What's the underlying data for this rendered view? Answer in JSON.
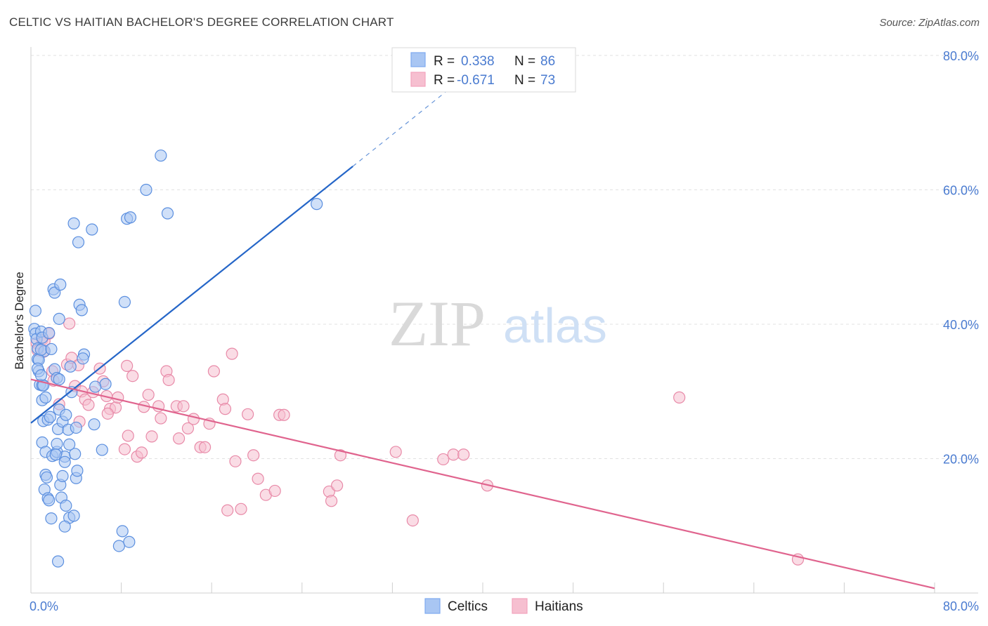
{
  "header": {
    "title": "CELTIC VS HAITIAN BACHELOR'S DEGREE CORRELATION CHART",
    "source": "Source: ZipAtlas.com"
  },
  "watermark": {
    "zip": "ZIP",
    "atlas": "atlas"
  },
  "legend": {
    "r_label": "R =",
    "n_label": "N =",
    "entries": [
      {
        "r": "0.338",
        "n": "86",
        "color": "#7eaaf0"
      },
      {
        "r": "-0.671",
        "n": "73",
        "color": "#f3a3bd"
      }
    ]
  },
  "colors": {
    "celtics_fill": "#a9c6f3",
    "celtics_stroke": "#5b8fdf",
    "celtics_line": "#2566c8",
    "haitians_fill": "#f6bfd0",
    "haitians_stroke": "#e88aa8",
    "haitians_line": "#e0648e",
    "tick_text": "#4a7bd0"
  },
  "chart_data": {
    "type": "scatter",
    "title": "CELTIC VS HAITIAN BACHELOR'S DEGREE CORRELATION CHART",
    "xlabel": "",
    "ylabel": "Bachelor's Degree",
    "xlim": [
      0,
      80
    ],
    "ylim": [
      0,
      80
    ],
    "x_tick_labels": [
      "0.0%",
      "80.0%"
    ],
    "y_tick_labels": [
      "20.0%",
      "40.0%",
      "60.0%",
      "80.0%"
    ],
    "y_ticks": [
      20,
      40,
      60,
      80
    ],
    "grid": true,
    "legend_placement": "top-center",
    "series": [
      {
        "name": "Celtics",
        "r": 0.338,
        "n": 86,
        "trend": {
          "x0": 0,
          "y0": 25.3,
          "x1": 28.5,
          "y1": 63.5,
          "dashed_to_x": 40,
          "dashed_to_y": 79
        },
        "points": [
          [
            0.3,
            39.3
          ],
          [
            0.4,
            38.6
          ],
          [
            0.5,
            37.8
          ],
          [
            0.6,
            36.4
          ],
          [
            0.6,
            34.8
          ],
          [
            0.7,
            33.0
          ],
          [
            0.8,
            31.0
          ],
          [
            0.4,
            42.0
          ],
          [
            0.9,
            38.9
          ],
          [
            1.0,
            30.9
          ],
          [
            1.2,
            36.0
          ],
          [
            1.0,
            28.7
          ],
          [
            1.3,
            29.1
          ],
          [
            1.1,
            25.6
          ],
          [
            1.5,
            25.8
          ],
          [
            1.7,
            26.2
          ],
          [
            1.0,
            22.4
          ],
          [
            1.3,
            21.0
          ],
          [
            1.9,
            20.4
          ],
          [
            2.3,
            21.0
          ],
          [
            1.3,
            17.6
          ],
          [
            1.4,
            17.2
          ],
          [
            1.2,
            15.4
          ],
          [
            1.5,
            14.1
          ],
          [
            1.6,
            13.8
          ],
          [
            1.8,
            11.1
          ],
          [
            2.6,
            16.1
          ],
          [
            2.8,
            17.4
          ],
          [
            2.4,
            24.4
          ],
          [
            2.3,
            22.2
          ],
          [
            2.5,
            27.3
          ],
          [
            2.8,
            25.5
          ],
          [
            2.1,
            33.3
          ],
          [
            2.3,
            32.0
          ],
          [
            2.0,
            45.2
          ],
          [
            2.1,
            44.7
          ],
          [
            2.6,
            45.9
          ],
          [
            2.5,
            40.8
          ],
          [
            1.1,
            30.9
          ],
          [
            0.7,
            34.7
          ],
          [
            3.0,
            20.3
          ],
          [
            3.0,
            19.5
          ],
          [
            2.7,
            14.2
          ],
          [
            3.1,
            13.0
          ],
          [
            3.4,
            11.2
          ],
          [
            3.0,
            9.9
          ],
          [
            3.8,
            11.5
          ],
          [
            4.0,
            17.1
          ],
          [
            4.1,
            18.2
          ],
          [
            3.9,
            20.7
          ],
          [
            3.3,
            24.3
          ],
          [
            3.4,
            22.1
          ],
          [
            4.0,
            24.6
          ],
          [
            3.5,
            33.7
          ],
          [
            3.6,
            29.9
          ],
          [
            4.3,
            42.9
          ],
          [
            4.5,
            42.1
          ],
          [
            4.7,
            35.5
          ],
          [
            4.6,
            34.9
          ],
          [
            5.6,
            25.1
          ],
          [
            6.3,
            21.3
          ],
          [
            6.6,
            31.1
          ],
          [
            3.8,
            55.0
          ],
          [
            4.2,
            52.2
          ],
          [
            5.4,
            54.1
          ],
          [
            8.3,
            43.3
          ],
          [
            8.5,
            55.7
          ],
          [
            8.8,
            55.9
          ],
          [
            10.2,
            60.0
          ],
          [
            11.5,
            65.1
          ],
          [
            12.1,
            56.5
          ],
          [
            25.3,
            57.9
          ],
          [
            8.1,
            9.2
          ],
          [
            7.8,
            7.0
          ],
          [
            8.7,
            7.6
          ],
          [
            2.4,
            4.7
          ],
          [
            0.9,
            36.2
          ],
          [
            1.0,
            38.0
          ],
          [
            1.6,
            38.7
          ],
          [
            1.8,
            36.3
          ],
          [
            0.6,
            33.4
          ],
          [
            0.9,
            32.4
          ],
          [
            2.5,
            31.8
          ],
          [
            3.1,
            26.5
          ],
          [
            5.7,
            30.7
          ],
          [
            2.2,
            20.6
          ]
        ]
      },
      {
        "name": "Haitians",
        "r": -0.671,
        "n": 73,
        "trend": {
          "x0": 0,
          "y0": 31.8,
          "x1": 80,
          "y1": 0.7
        },
        "points": [
          [
            0.5,
            37.2
          ],
          [
            0.6,
            36.1
          ],
          [
            1.0,
            37.7
          ],
          [
            1.2,
            37.5
          ],
          [
            1.6,
            38.6
          ],
          [
            1.1,
            35.9
          ],
          [
            1.9,
            33.0
          ],
          [
            2.0,
            31.6
          ],
          [
            2.5,
            28.1
          ],
          [
            3.2,
            34.0
          ],
          [
            3.4,
            40.1
          ],
          [
            3.6,
            35.0
          ],
          [
            3.9,
            30.8
          ],
          [
            4.2,
            33.9
          ],
          [
            4.5,
            30.0
          ],
          [
            4.8,
            28.8
          ],
          [
            5.1,
            28.0
          ],
          [
            4.3,
            25.5
          ],
          [
            5.5,
            29.9
          ],
          [
            6.1,
            33.4
          ],
          [
            6.4,
            31.5
          ],
          [
            6.7,
            29.3
          ],
          [
            7.0,
            27.4
          ],
          [
            7.5,
            27.6
          ],
          [
            7.7,
            29.1
          ],
          [
            6.8,
            26.7
          ],
          [
            8.5,
            33.8
          ],
          [
            9.0,
            32.3
          ],
          [
            8.6,
            23.4
          ],
          [
            8.3,
            21.4
          ],
          [
            9.4,
            20.3
          ],
          [
            9.8,
            20.9
          ],
          [
            10.0,
            27.7
          ],
          [
            10.4,
            29.5
          ],
          [
            10.7,
            23.3
          ],
          [
            11.3,
            27.8
          ],
          [
            11.5,
            26.0
          ],
          [
            12.0,
            33.0
          ],
          [
            12.2,
            31.7
          ],
          [
            12.9,
            27.8
          ],
          [
            13.1,
            23.0
          ],
          [
            13.5,
            27.8
          ],
          [
            13.9,
            24.5
          ],
          [
            14.4,
            25.9
          ],
          [
            15.0,
            21.7
          ],
          [
            15.4,
            21.7
          ],
          [
            15.8,
            25.2
          ],
          [
            16.2,
            33.0
          ],
          [
            17.0,
            28.8
          ],
          [
            17.2,
            27.4
          ],
          [
            17.8,
            35.6
          ],
          [
            17.4,
            12.3
          ],
          [
            18.1,
            19.6
          ],
          [
            18.6,
            12.5
          ],
          [
            19.2,
            26.6
          ],
          [
            19.7,
            20.5
          ],
          [
            20.1,
            17.0
          ],
          [
            20.8,
            14.6
          ],
          [
            21.6,
            15.2
          ],
          [
            22.0,
            26.5
          ],
          [
            22.4,
            26.5
          ],
          [
            26.4,
            15.1
          ],
          [
            26.6,
            13.7
          ],
          [
            27.1,
            16.0
          ],
          [
            27.4,
            20.5
          ],
          [
            32.3,
            21.0
          ],
          [
            33.8,
            10.8
          ],
          [
            36.5,
            19.9
          ],
          [
            37.4,
            20.6
          ],
          [
            38.3,
            20.6
          ],
          [
            40.4,
            16.0
          ],
          [
            57.4,
            29.1
          ],
          [
            67.9,
            5.0
          ]
        ]
      }
    ]
  },
  "bottom_legend": {
    "celtics": "Celtics",
    "haitians": "Haitians"
  }
}
